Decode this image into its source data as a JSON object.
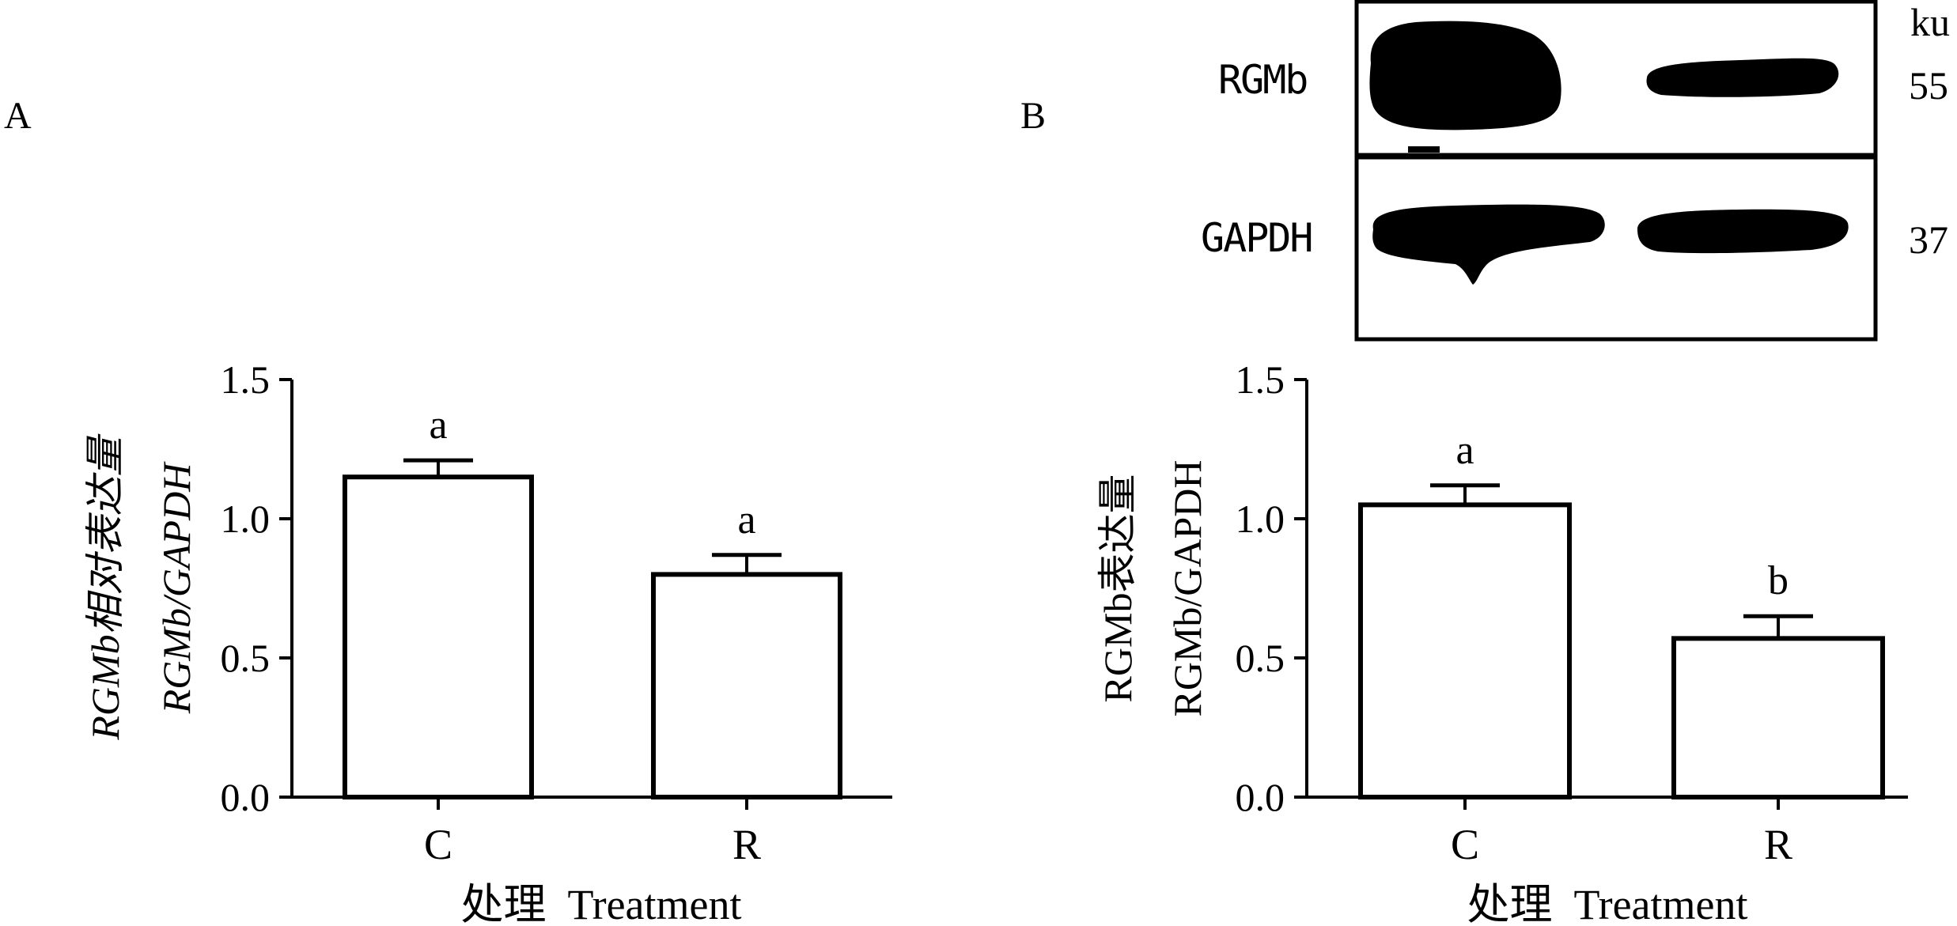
{
  "panels": {
    "A": {
      "label": "A"
    },
    "B": {
      "label": "B"
    }
  },
  "blot": {
    "unit_label": "ku",
    "rows": [
      {
        "name": "RGMb",
        "size": "55"
      },
      {
        "name": "GAPDH",
        "size": "37"
      }
    ]
  },
  "chart_data": [
    {
      "type": "bar",
      "panel": "A",
      "categories": [
        "C",
        "R"
      ],
      "values": [
        1.15,
        0.8
      ],
      "errors": [
        0.06,
        0.07
      ],
      "significance": [
        "a",
        "a"
      ],
      "ylabel_line1": "RGMb相对表达量",
      "ylabel_line2": "RGMb/GAPDH",
      "xlabel": "处理  Treatment",
      "ylim": [
        0,
        1.5
      ],
      "yticks": [
        "0.0",
        "0.5",
        "1.0",
        "1.5"
      ]
    },
    {
      "type": "bar",
      "panel": "B",
      "categories": [
        "C",
        "R"
      ],
      "values": [
        1.05,
        0.57
      ],
      "errors": [
        0.07,
        0.08
      ],
      "significance": [
        "a",
        "b"
      ],
      "ylabel_line1": "RGMb表达量",
      "ylabel_line2": "RGMb/GAPDH",
      "xlabel": "处理  Treatment",
      "ylim": [
        0,
        1.5
      ],
      "yticks": [
        "0.0",
        "0.5",
        "1.0",
        "1.5"
      ]
    }
  ]
}
